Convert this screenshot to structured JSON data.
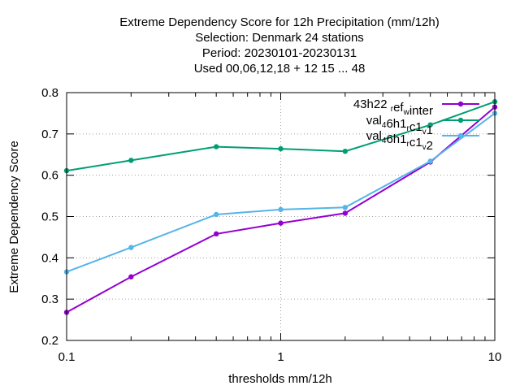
{
  "chart_data": {
    "type": "line",
    "title_lines": [
      "Extreme Dependency Score  for 12h Precipitation (mm/12h)",
      "Selection: Denmark     24 stations",
      "Period: 20230101-20230131",
      "Used  00,06,12,18  + 12 15 ... 48"
    ],
    "xlabel": "thresholds mm/12h",
    "ylabel": "Extreme Dependency Score",
    "xscale": "log",
    "xlim": [
      0.1,
      10
    ],
    "ylim": [
      0.2,
      0.8
    ],
    "xticks": [
      "0.1",
      "1",
      "10"
    ],
    "yticks": [
      "0.2",
      "0.3",
      "0.4",
      "0.5",
      "0.6",
      "0.7",
      "0.8"
    ],
    "grid": true,
    "legend_position": "top-right",
    "x": [
      0.1,
      0.2,
      0.5,
      1,
      2,
      5,
      10
    ],
    "series": [
      {
        "name": "43h22_ref_winter",
        "legend_parts": [
          [
            "43h22 ",
            ""
          ],
          [
            "r",
            "sub"
          ],
          [
            "ef",
            ""
          ],
          [
            "w",
            "sub"
          ],
          [
            "inter",
            ""
          ]
        ],
        "color": "#9400d3",
        "values": [
          0.268,
          0.354,
          0.458,
          0.484,
          0.508,
          0.632,
          0.765
        ]
      },
      {
        "name": "val_46h1_rc1_v1",
        "legend_parts": [
          [
            "val",
            ""
          ],
          [
            "4",
            "sub"
          ],
          [
            "6h1",
            ""
          ],
          [
            "r",
            "sub"
          ],
          [
            "c1",
            ""
          ],
          [
            "v",
            "sub"
          ],
          [
            "1",
            ""
          ]
        ],
        "color": "#009e73",
        "values": [
          0.611,
          0.636,
          0.669,
          0.664,
          0.658,
          0.722,
          0.778
        ]
      },
      {
        "name": "val_46h1_rc1_v2",
        "legend_parts": [
          [
            "val",
            ""
          ],
          [
            "4",
            "sub"
          ],
          [
            "6h1",
            ""
          ],
          [
            "r",
            "sub"
          ],
          [
            "c1",
            ""
          ],
          [
            "v",
            "sub"
          ],
          [
            "2",
            ""
          ]
        ],
        "color": "#56b4e9",
        "values": [
          0.366,
          0.425,
          0.505,
          0.517,
          0.522,
          0.634,
          0.75
        ]
      }
    ]
  }
}
